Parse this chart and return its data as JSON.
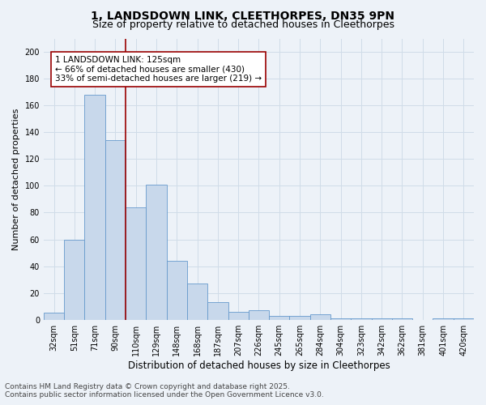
{
  "title_line1": "1, LANDSDOWN LINK, CLEETHORPES, DN35 9PN",
  "title_line2": "Size of property relative to detached houses in Cleethorpes",
  "xlabel": "Distribution of detached houses by size in Cleethorpes",
  "ylabel": "Number of detached properties",
  "categories": [
    "32sqm",
    "51sqm",
    "71sqm",
    "90sqm",
    "110sqm",
    "129sqm",
    "148sqm",
    "168sqm",
    "187sqm",
    "207sqm",
    "226sqm",
    "245sqm",
    "265sqm",
    "284sqm",
    "304sqm",
    "323sqm",
    "342sqm",
    "362sqm",
    "381sqm",
    "401sqm",
    "420sqm"
  ],
  "values": [
    5,
    60,
    168,
    134,
    84,
    101,
    44,
    27,
    13,
    6,
    7,
    3,
    3,
    4,
    1,
    1,
    1,
    1,
    0,
    1,
    1
  ],
  "bar_color": "#c8d8eb",
  "bar_edge_color": "#6699cc",
  "vline_x": 3.5,
  "vline_color": "#990000",
  "annotation_text": "1 LANDSDOWN LINK: 125sqm\n← 66% of detached houses are smaller (430)\n33% of semi-detached houses are larger (219) →",
  "annotation_box_color": "#ffffff",
  "annotation_box_edge": "#990000",
  "ylim": [
    0,
    210
  ],
  "yticks": [
    0,
    20,
    40,
    60,
    80,
    100,
    120,
    140,
    160,
    180,
    200
  ],
  "background_color": "#edf2f8",
  "grid_color": "#d0dce8",
  "footer_line1": "Contains HM Land Registry data © Crown copyright and database right 2025.",
  "footer_line2": "Contains public sector information licensed under the Open Government Licence v3.0.",
  "title_fontsize": 10,
  "subtitle_fontsize": 9,
  "xlabel_fontsize": 8.5,
  "ylabel_fontsize": 8,
  "tick_fontsize": 7,
  "annotation_fontsize": 7.5,
  "footer_fontsize": 6.5
}
